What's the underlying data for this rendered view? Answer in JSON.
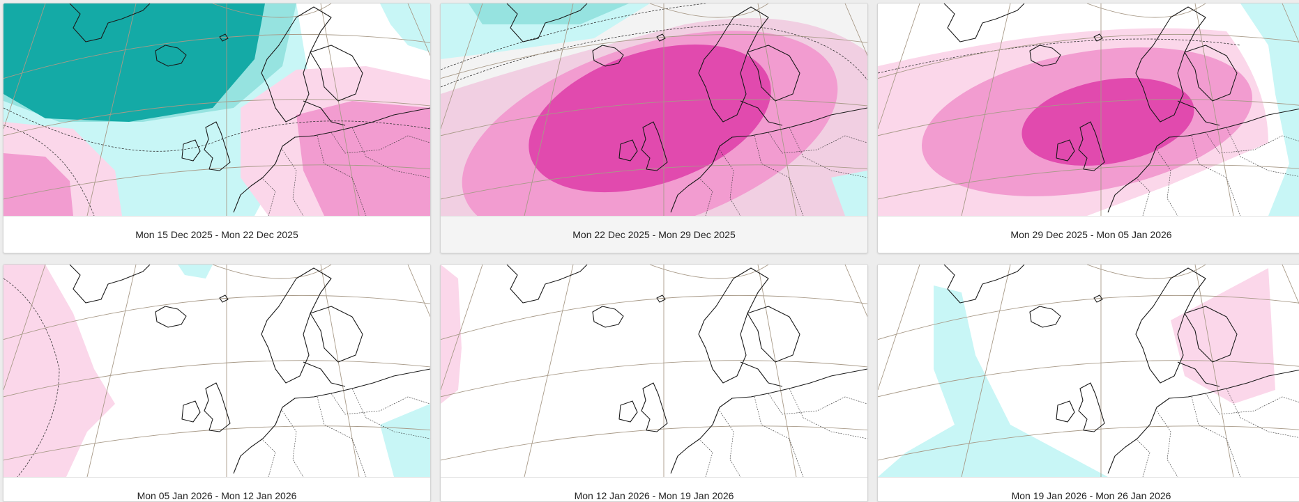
{
  "colors": {
    "pink_light": "#fbd7ea",
    "pink_mid": "#f29cd0",
    "pink_strong": "#e14aae",
    "pink_muted": "#f1cfe2",
    "cyan_light": "#c8f6f6",
    "cyan_mid": "#96e3e0",
    "teal_dark": "#14aaa6",
    "land_outline": "#1a1a1a",
    "graticule": "#a89a88"
  },
  "legend_icons": [
    "map-forecast-icon"
  ],
  "panels": [
    {
      "caption": "Mon 15 Dec 2025 - Mon 22 Dec 2025",
      "selected": false
    },
    {
      "caption": "Mon 22 Dec 2025 - Mon 29 Dec 2025",
      "selected": true
    },
    {
      "caption": "Mon 29 Dec 2025 - Mon 05 Jan 2026",
      "selected": false
    },
    {
      "caption": "Mon 05 Jan 2026 - Mon 12 Jan 2026",
      "selected": false
    },
    {
      "caption": "Mon 12 Jan 2026 - Mon 19 Jan 2026",
      "selected": false
    },
    {
      "caption": "Mon 19 Jan 2026 - Mon 26 Jan 2026",
      "selected": false
    }
  ]
}
